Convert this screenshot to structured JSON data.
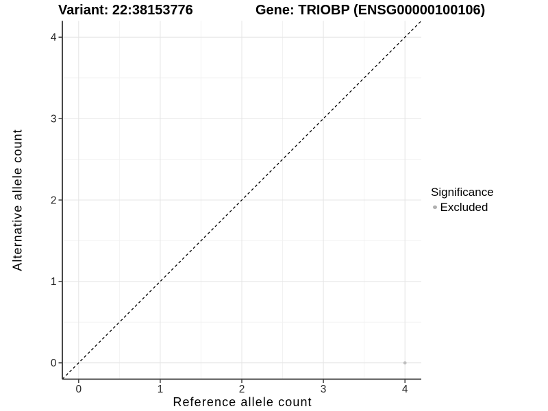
{
  "chart_data": {
    "type": "scatter",
    "title_left": "Variant: 22:38153776",
    "title_right": "Gene: TRIOBP (ENSG00000100106)",
    "xlabel": "Reference allele count",
    "ylabel": "Alternative allele count",
    "xlim": [
      -0.2,
      4.2
    ],
    "ylim": [
      -0.2,
      4.2
    ],
    "x_ticks": [
      0,
      1,
      2,
      3,
      4
    ],
    "y_ticks": [
      0,
      1,
      2,
      3,
      4
    ],
    "x_minor_ticks": [
      0.5,
      1.5,
      2.5,
      3.5
    ],
    "y_minor_ticks": [
      0.5,
      1.5,
      2.5,
      3.5
    ],
    "grid": "major+minor",
    "legend_position": "right",
    "legend_title": "Significance",
    "series": [
      {
        "name": "Excluded",
        "color": "#b5b5b5",
        "points": [
          {
            "x": 4,
            "y": 0
          }
        ]
      }
    ],
    "reference_line": {
      "type": "identity y=x",
      "style": "dashed",
      "color": "#000000",
      "from": [
        -0.2,
        -0.2
      ],
      "to": [
        4.2,
        4.2
      ]
    }
  },
  "style": {
    "background": "#ffffff",
    "grid_major_color": "#e4e4e4",
    "grid_minor_color": "#f2f2f2",
    "axis_line_color": "#333333",
    "tick_label_color": "#262626",
    "point_color": "#bebebe",
    "legend_key_color": "#b0b0b0"
  }
}
